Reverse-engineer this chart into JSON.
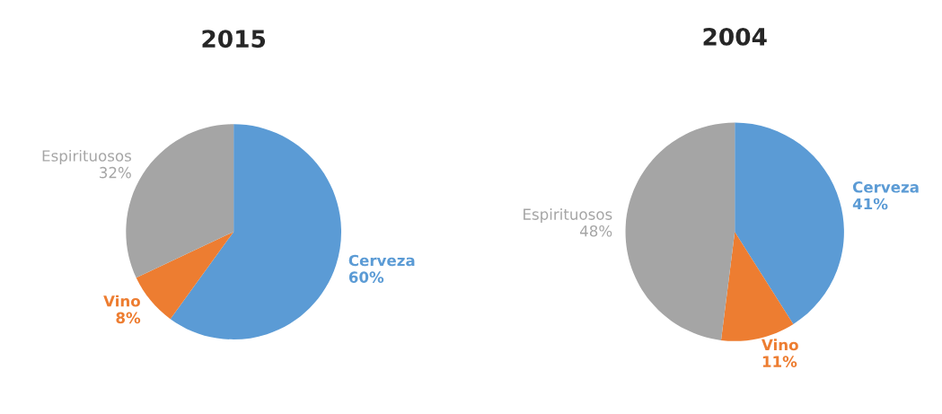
{
  "chart_data": [
    {
      "type": "pie",
      "title": "2015",
      "categories": [
        "Cerveza",
        "Vino",
        "Espirituosos"
      ],
      "values": [
        60,
        8,
        32
      ],
      "value_labels": [
        "60%",
        "8%",
        "32%"
      ],
      "colors": [
        "#5b9bd5",
        "#ed7d31",
        "#a5a5a5"
      ],
      "legend": false
    },
    {
      "type": "pie",
      "title": "2004",
      "categories": [
        "Cerveza",
        "Vino",
        "Espirituosos"
      ],
      "values": [
        41,
        11,
        48
      ],
      "value_labels": [
        "41%",
        "11%",
        "48%"
      ],
      "colors": [
        "#5b9bd5",
        "#ed7d31",
        "#a5a5a5"
      ],
      "legend": false
    }
  ]
}
